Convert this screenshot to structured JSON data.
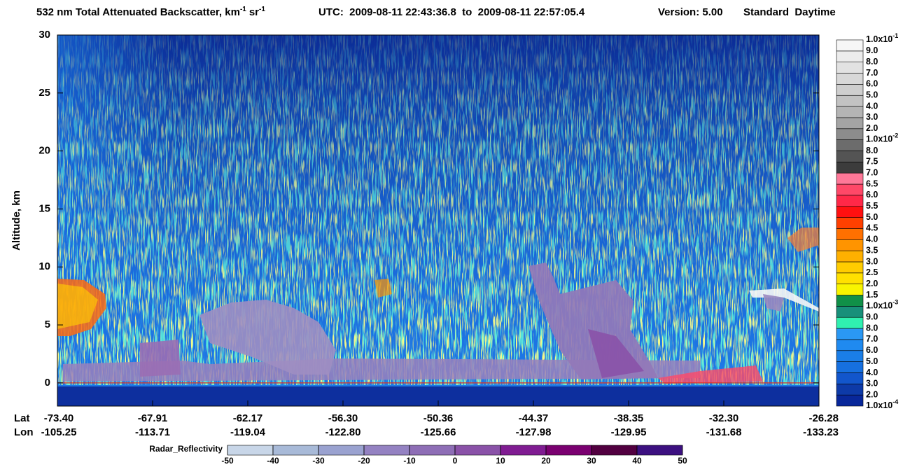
{
  "chart_data": {
    "type": "heatmap",
    "title": {
      "text": "532 nm Total Attenuated Backscatter, km",
      "sup1": "-1",
      "unit": "sr",
      "sup2": "-1"
    },
    "subtitle": "UTC:  2009-08-11 22:43:36.8  to  2009-08-11 22:57:05.4",
    "version": "Version: 5.00",
    "mode": "Standard  Daytime",
    "ylabel": "Altitude, km",
    "ylim": [
      -2,
      30
    ],
    "yticks": [
      0,
      5,
      10,
      15,
      20,
      25,
      30
    ],
    "x_row_labels": [
      "Lat",
      "Lon"
    ],
    "lat": [
      "-73.40",
      "-67.91",
      "-62.17",
      "-56.30",
      "-50.36",
      "-44.37",
      "-38.35",
      "-32.30",
      "-26.28"
    ],
    "lon": [
      "-105.25",
      "-113.71",
      "-119.04",
      "-122.80",
      "-125.66",
      "-127.98",
      "-129.95",
      "-131.68",
      "-133.23"
    ],
    "colorbar": {
      "labels": [
        {
          "text": "1.0x10",
          "sup": "-4"
        },
        "2.0",
        "3.0",
        "4.0",
        "5.0",
        "6.0",
        "7.0",
        "8.0",
        "9.0",
        {
          "text": "1.0x10",
          "sup": "-3"
        },
        "1.5",
        "2.0",
        "2.5",
        "3.0",
        "3.5",
        "4.0",
        "4.5",
        "5.0",
        "5.5",
        "6.0",
        "6.5",
        "7.0",
        "7.5",
        "8.0",
        {
          "text": "1.0x10",
          "sup": "-2"
        },
        "2.0",
        "3.0",
        "4.0",
        "5.0",
        "6.0",
        "7.0",
        "8.0",
        "9.0",
        {
          "text": "1.0x10",
          "sup": "-1"
        }
      ],
      "colors": [
        "#08279a",
        "#0d3aa8",
        "#1256cc",
        "#1670e0",
        "#1a7ee8",
        "#1f8af0",
        "#2a98f4",
        "#30f0b0",
        "#18907a",
        "#109048",
        "#f8f400",
        "#ffe000",
        "#ffcc00",
        "#ffb000",
        "#ff9400",
        "#ff7000",
        "#ff4000",
        "#ff1010",
        "#ff2848",
        "#ff4868",
        "#ff7898",
        "#3c3c3c",
        "#545454",
        "#6c6c6c",
        "#8c8c8c",
        "#a4a4a4",
        "#b4b4b4",
        "#c2c2c2",
        "#cecece",
        "#d8d8d8",
        "#e2e2e2",
        "#ececec",
        "#f6f6f6"
      ]
    },
    "radar_colorbar": {
      "label": "Radar_Reflectivity",
      "xlim": [
        -50,
        50
      ],
      "ticks": [
        -50,
        -40,
        -30,
        -20,
        -10,
        0,
        10,
        20,
        30,
        40,
        50
      ],
      "colors": [
        "#c8d6e8",
        "#a8bad8",
        "#9aa2d0",
        "#9482c2",
        "#8e6eb6",
        "#8a52a8",
        "#801c92",
        "#7a0070",
        "#520040",
        "#3c1080"
      ]
    }
  }
}
